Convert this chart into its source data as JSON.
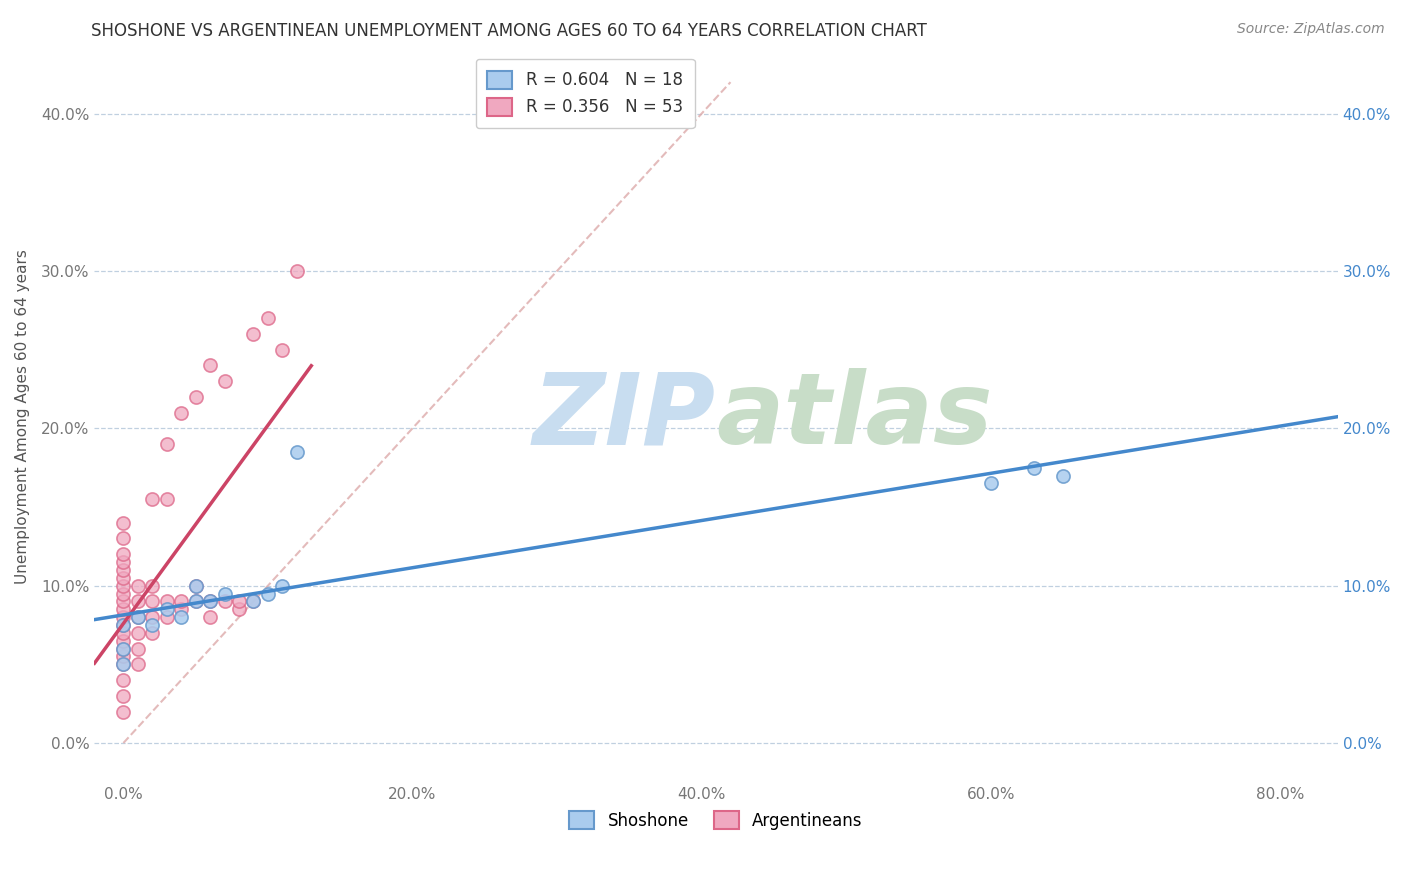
{
  "title": "SHOSHONE VS ARGENTINEAN UNEMPLOYMENT AMONG AGES 60 TO 64 YEARS CORRELATION CHART",
  "source": "Source: ZipAtlas.com",
  "ylabel": "Unemployment Among Ages 60 to 64 years",
  "x_tick_labels": [
    "0.0%",
    "20.0%",
    "40.0%",
    "60.0%",
    "80.0%"
  ],
  "x_tick_values": [
    0.0,
    0.2,
    0.4,
    0.6,
    0.8
  ],
  "y_tick_labels": [
    "0.0%",
    "10.0%",
    "20.0%",
    "30.0%",
    "40.0%"
  ],
  "y_tick_values": [
    0.0,
    0.1,
    0.2,
    0.3,
    0.4
  ],
  "xlim": [
    -0.02,
    0.84
  ],
  "ylim": [
    -0.025,
    0.44
  ],
  "legend_labels": [
    "Shoshone",
    "Argentineans"
  ],
  "legend_R": [
    0.604,
    0.356
  ],
  "legend_N": [
    18,
    53
  ],
  "shoshone_color": "#aaccee",
  "argentinean_color": "#f0a8c0",
  "shoshone_edge_color": "#6699cc",
  "argentinean_edge_color": "#dd6688",
  "shoshone_line_color": "#4488cc",
  "argentinean_line_color": "#cc4466",
  "ref_line_color": "#ddaaaa",
  "watermark_zip_color": "#c8ddf0",
  "watermark_atlas_color": "#c8ddc8",
  "background_color": "#ffffff",
  "grid_color": "#c0d0e0",
  "title_fontsize": 12,
  "source_fontsize": 10,
  "axis_label_fontsize": 11,
  "tick_fontsize": 11,
  "legend_fontsize": 12,
  "marker_size": 90,
  "marker_linewidth": 1.2,
  "line_width": 2.5,
  "shoshone_x": [
    0.0,
    0.0,
    0.0,
    0.01,
    0.02,
    0.03,
    0.04,
    0.05,
    0.05,
    0.06,
    0.07,
    0.09,
    0.1,
    0.11,
    0.12,
    0.6,
    0.63,
    0.65
  ],
  "shoshone_y": [
    0.05,
    0.06,
    0.075,
    0.08,
    0.075,
    0.085,
    0.08,
    0.09,
    0.1,
    0.09,
    0.095,
    0.09,
    0.095,
    0.1,
    0.185,
    0.165,
    0.175,
    0.17
  ],
  "argentinean_x": [
    0.0,
    0.0,
    0.0,
    0.0,
    0.0,
    0.0,
    0.0,
    0.0,
    0.0,
    0.0,
    0.0,
    0.0,
    0.0,
    0.0,
    0.0,
    0.0,
    0.0,
    0.0,
    0.0,
    0.0,
    0.01,
    0.01,
    0.01,
    0.01,
    0.01,
    0.01,
    0.02,
    0.02,
    0.02,
    0.02,
    0.02,
    0.03,
    0.03,
    0.03,
    0.03,
    0.04,
    0.04,
    0.04,
    0.05,
    0.05,
    0.05,
    0.06,
    0.06,
    0.06,
    0.07,
    0.07,
    0.08,
    0.08,
    0.09,
    0.09,
    0.1,
    0.11,
    0.12
  ],
  "argentinean_y": [
    0.02,
    0.03,
    0.04,
    0.05,
    0.055,
    0.06,
    0.065,
    0.07,
    0.075,
    0.08,
    0.085,
    0.09,
    0.095,
    0.1,
    0.105,
    0.11,
    0.115,
    0.12,
    0.13,
    0.14,
    0.05,
    0.06,
    0.07,
    0.08,
    0.09,
    0.1,
    0.07,
    0.08,
    0.09,
    0.1,
    0.155,
    0.08,
    0.09,
    0.155,
    0.19,
    0.085,
    0.09,
    0.21,
    0.09,
    0.1,
    0.22,
    0.08,
    0.09,
    0.24,
    0.09,
    0.23,
    0.085,
    0.09,
    0.09,
    0.26,
    0.27,
    0.25,
    0.3
  ]
}
